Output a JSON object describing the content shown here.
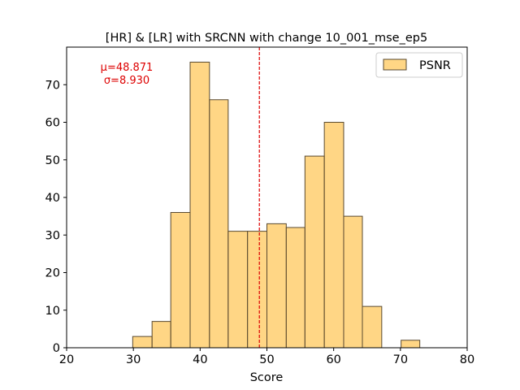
{
  "chart_data": {
    "type": "bar",
    "title": "[HR] & [LR] with SRCNN with change 10_001_mse_ep5",
    "xlabel": "Score",
    "ylabel": "",
    "xlim": [
      20,
      80
    ],
    "ylim": [
      0,
      80
    ],
    "xticks": [
      20,
      30,
      40,
      50,
      60,
      70,
      80
    ],
    "yticks": [
      0,
      10,
      20,
      30,
      40,
      50,
      60,
      70
    ],
    "grid": false,
    "legend": {
      "position": "top-right",
      "entries": [
        "PSNR"
      ]
    },
    "series": [
      {
        "name": "PSNR",
        "color": "#ffc044",
        "edge_color": "#5a4a30",
        "bins": [
          {
            "x0": 29.9,
            "x1": 32.8,
            "count": 3
          },
          {
            "x0": 32.8,
            "x1": 35.6,
            "count": 7
          },
          {
            "x0": 35.6,
            "x1": 38.5,
            "count": 36
          },
          {
            "x0": 38.5,
            "x1": 41.4,
            "count": 76
          },
          {
            "x0": 41.4,
            "x1": 44.2,
            "count": 66
          },
          {
            "x0": 44.2,
            "x1": 47.1,
            "count": 31
          },
          {
            "x0": 47.1,
            "x1": 50.0,
            "count": 31
          },
          {
            "x0": 50.0,
            "x1": 52.9,
            "count": 33
          },
          {
            "x0": 52.9,
            "x1": 55.7,
            "count": 32
          },
          {
            "x0": 55.7,
            "x1": 58.6,
            "count": 51
          },
          {
            "x0": 58.6,
            "x1": 61.5,
            "count": 60
          },
          {
            "x0": 61.5,
            "x1": 64.3,
            "count": 35
          },
          {
            "x0": 64.3,
            "x1": 67.2,
            "count": 11
          },
          {
            "x0": 67.2,
            "x1": 70.1,
            "count": 0
          },
          {
            "x0": 70.1,
            "x1": 72.9,
            "count": 2
          }
        ]
      }
    ],
    "mean_line": {
      "x": 48.871,
      "color": "#dd0000"
    },
    "annotation": {
      "lines": [
        "μ=48.871",
        "σ=8.930"
      ],
      "color": "#dd0000"
    }
  }
}
